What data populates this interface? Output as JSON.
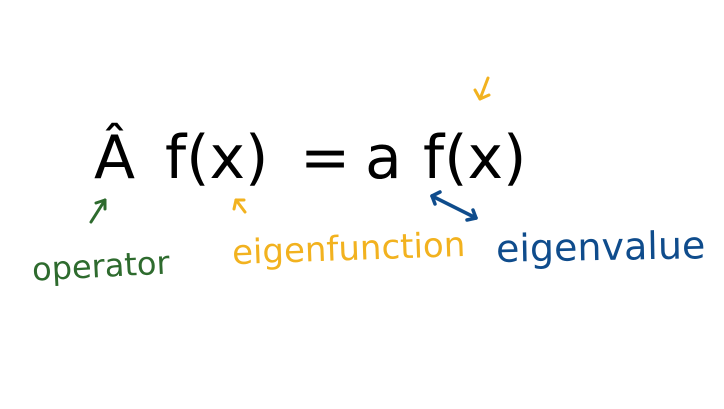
{
  "equation": {
    "operator": "Â",
    "eigenfunction_left": "f(x)",
    "equals": "=",
    "eigenvalue": "a",
    "eigenfunction_right": "f(x)"
  },
  "labels": {
    "operator": "operator",
    "eigenfunction": "eigenfunction",
    "eigenvalue": "eigenvalue"
  },
  "colors": {
    "equation": "#000000",
    "operator": "#2e6b2e",
    "eigenfunction": "#f2b21f",
    "eigenvalue": "#0f4c8c"
  }
}
